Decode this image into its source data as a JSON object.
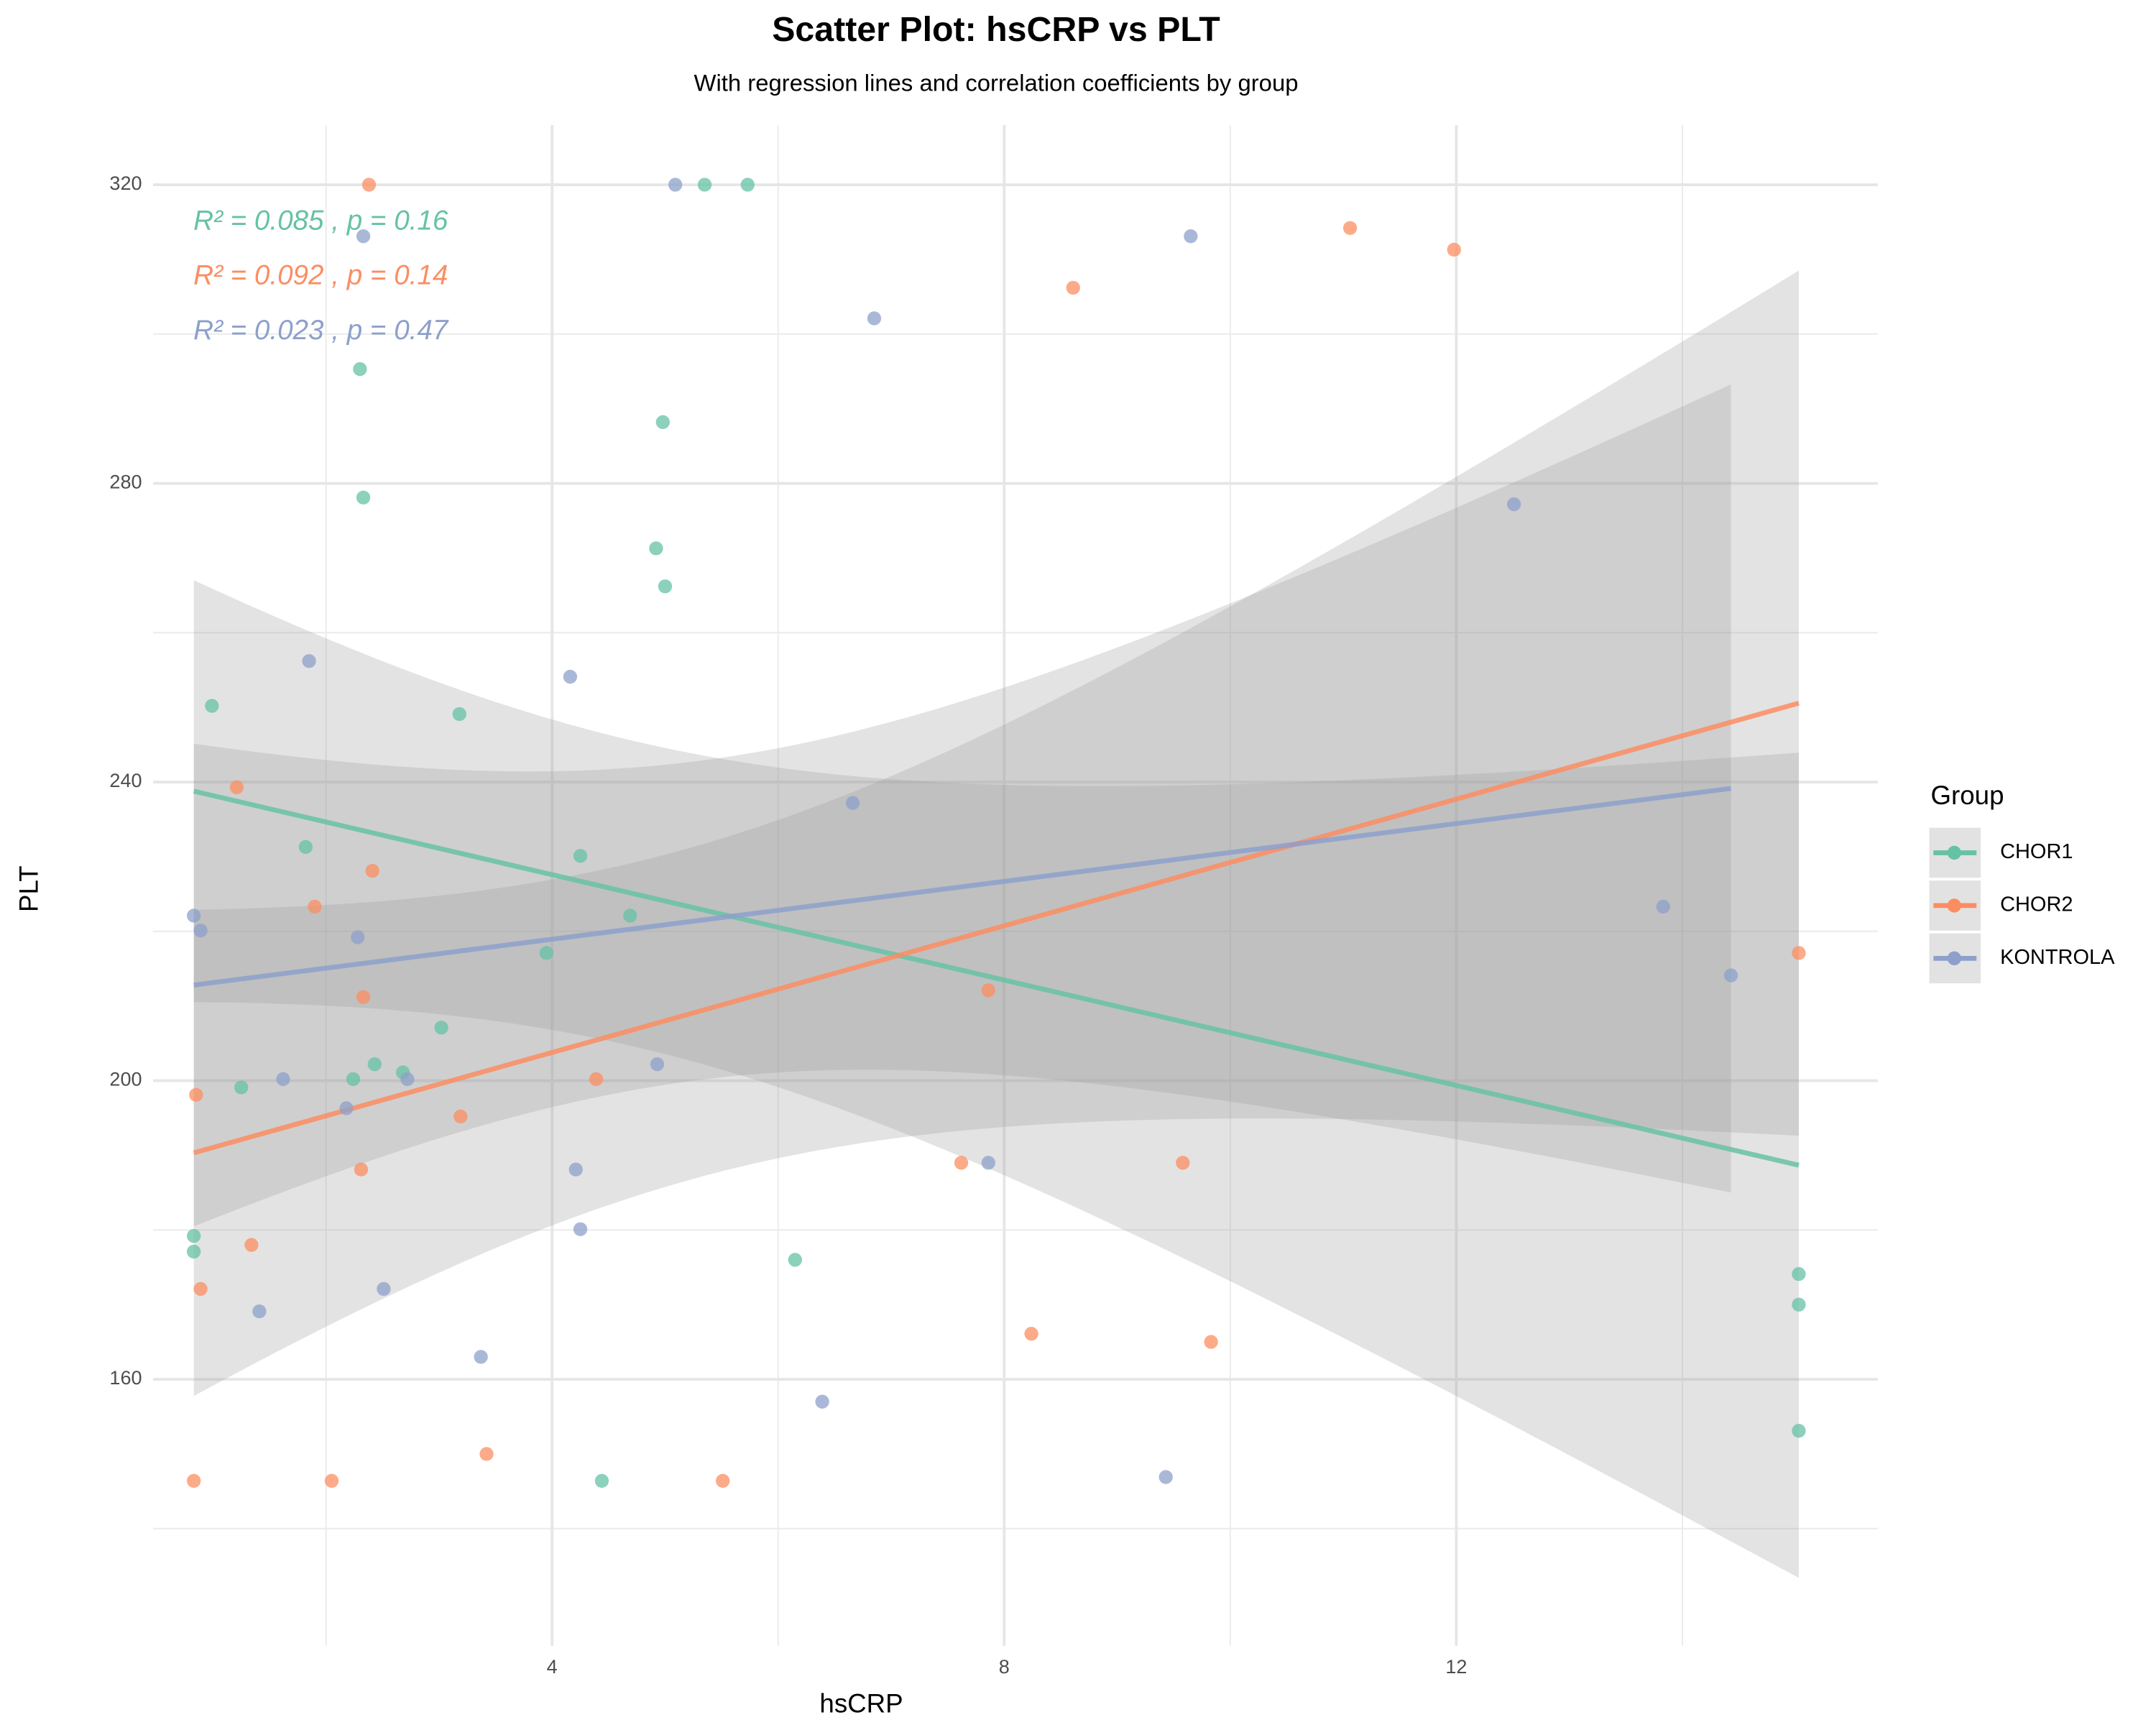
{
  "chart_data": {
    "type": "scatter",
    "title": "Scatter Plot: hsCRP vs PLT",
    "subtitle": "With regression lines and correlation coefficients by group",
    "x_label": "hsCRP",
    "y_label": "PLT",
    "legend_title": "Group",
    "legend_position": "right",
    "grid": true,
    "xlim": [
      0.47,
      15.73
    ],
    "ylim": [
      124.3,
      328
    ],
    "xticks": [
      4,
      8,
      12
    ],
    "yticks": [
      160,
      200,
      240,
      280,
      320
    ],
    "x_minor_grid": [
      2,
      6,
      10,
      14
    ],
    "y_minor_grid": [
      140,
      180,
      220,
      260,
      300
    ],
    "series": [
      {
        "name": "CHOR1",
        "color": "#66c2a5",
        "annotation": "R² = 0.085 , p = 0.16",
        "x": [
          0.99,
          1.82,
          2.3,
          2.33,
          3.18,
          4.25,
          3.95,
          4.69,
          4.92,
          4.98,
          5.0,
          5.35,
          5.73,
          3.02,
          2.68,
          2.43,
          2.24,
          1.25,
          0.83,
          0.83,
          6.15,
          4.44,
          15.03,
          15.03,
          15.03
        ],
        "values": [
          250.2,
          231.3,
          295.3,
          278.1,
          249.1,
          230.1,
          217.1,
          222.1,
          271.3,
          288.2,
          266.2,
          320,
          320,
          207.1,
          201.1,
          202.2,
          200.2,
          199.1,
          179.2,
          177.1,
          176.0,
          146.4,
          174.1,
          170.0,
          153.1
        ]
      },
      {
        "name": "CHOR2",
        "color": "#fc8d62",
        "annotation": "R² = 0.092 , p = 0.14",
        "x": [
          2.38,
          1.21,
          1.9,
          2.41,
          2.33,
          0.85,
          2.31,
          3.19,
          4.39,
          1.34,
          0.89,
          0.83,
          2.05,
          3.42,
          5.51,
          7.62,
          7.86,
          8.61,
          9.58,
          8.24,
          9.83,
          11.06,
          11.98,
          15.03
        ],
        "values": [
          320,
          239.3,
          223.3,
          228.1,
          211.2,
          198.1,
          188.1,
          195.2,
          200.2,
          178.0,
          172.1,
          146.4,
          146.4,
          150.0,
          146.4,
          189.0,
          212.1,
          306.2,
          189.0,
          166.1,
          165.0,
          314.2,
          311.3,
          217.1
        ]
      },
      {
        "name": "KONTROLA",
        "color": "#8da0cb",
        "annotation": "R² = 0.023 , p = 0.47",
        "x": [
          2.33,
          5.09,
          6.85,
          9.65,
          1.85,
          4.16,
          6.66,
          0.83,
          0.89,
          2.28,
          1.62,
          2.72,
          2.18,
          4.93,
          4.21,
          4.25,
          7.86,
          2.51,
          1.41,
          3.37,
          6.39,
          9.43,
          12.51,
          13.83,
          14.43
        ],
        "values": [
          313.1,
          320,
          302.1,
          313.1,
          256.2,
          254.1,
          237.2,
          222.1,
          220.1,
          219.2,
          200.2,
          200.2,
          196.3,
          202.2,
          188.1,
          180.1,
          189.0,
          172.1,
          169.1,
          163.0,
          157.0,
          146.9,
          277.2,
          223.3,
          214.1
        ]
      }
    ]
  }
}
